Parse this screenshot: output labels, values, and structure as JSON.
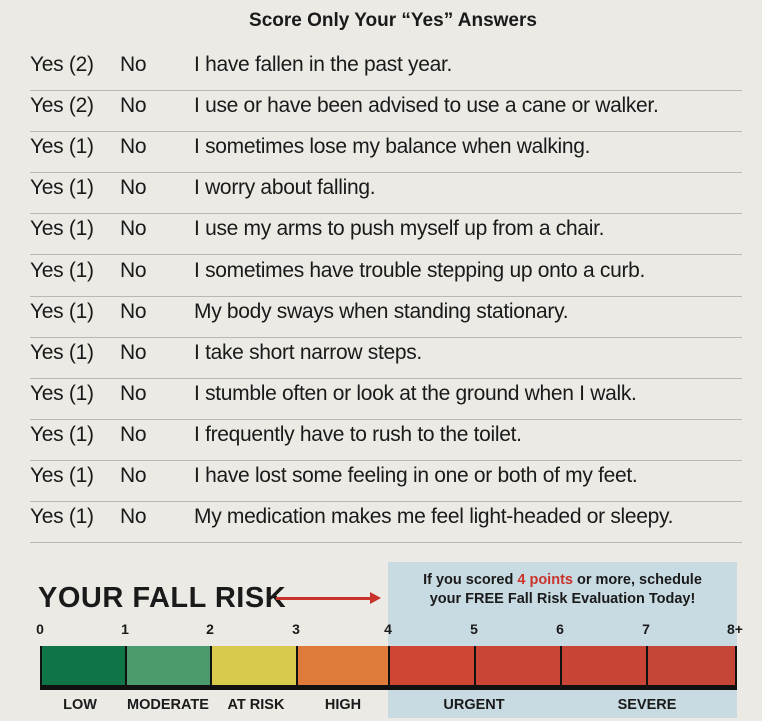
{
  "title": "Score Only Your “Yes” Answers",
  "questions": [
    {
      "yes": "Yes (2)",
      "no": "No",
      "text": "I have fallen in the past year."
    },
    {
      "yes": "Yes (2)",
      "no": "No",
      "text": "I use or have been advised to use a cane or walker."
    },
    {
      "yes": "Yes (1)",
      "no": "No",
      "text": "I sometimes lose my balance when walking."
    },
    {
      "yes": "Yes (1)",
      "no": "No",
      "text": "I worry about falling."
    },
    {
      "yes": "Yes (1)",
      "no": "No",
      "text": "I use my arms to push myself up from a chair."
    },
    {
      "yes": "Yes (1)",
      "no": "No",
      "text": "I sometimes have trouble stepping up onto a curb."
    },
    {
      "yes": "Yes (1)",
      "no": "No",
      "text": "My body sways when standing stationary."
    },
    {
      "yes": "Yes (1)",
      "no": "No",
      "text": "I take short narrow steps."
    },
    {
      "yes": "Yes (1)",
      "no": "No",
      "text": "I stumble often or look at the ground when I walk."
    },
    {
      "yes": "Yes (1)",
      "no": "No",
      "text": "I frequently have to rush to the toilet."
    },
    {
      "yes": "Yes (1)",
      "no": "No",
      "text": "I have lost some feeling in one or both of my feet."
    },
    {
      "yes": "Yes (1)",
      "no": "No",
      "text": "My medication makes me feel light-headed or sleepy."
    }
  ],
  "risk": {
    "heading": "YOUR FALL RISK",
    "message_pre": "If you scored ",
    "message_highlight": "4 points",
    "message_post": " or more, schedule",
    "message_line2": "your FREE Fall Risk Evaluation Today!",
    "ticks": [
      "0",
      "1",
      "2",
      "3",
      "4",
      "5",
      "6",
      "7",
      "8+"
    ],
    "segment_colors": [
      "#0f7446",
      "#4a9a6e",
      "#d8ca4c",
      "#df7b3a",
      "#cf4634",
      "#cb4536",
      "#c84536",
      "#c54537"
    ],
    "levels": [
      "LOW",
      "MODERATE",
      "AT RISK",
      "HIGH",
      "URGENT",
      "SEVERE"
    ],
    "highlight_color": "#c8342b"
  }
}
